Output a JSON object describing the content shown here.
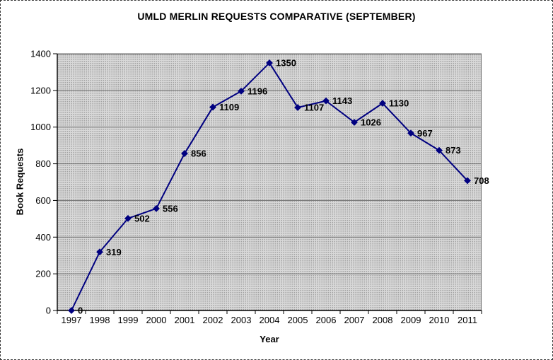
{
  "chart_data": {
    "type": "line",
    "title": "UMLD MERLIN REQUESTS COMPARATIVE (SEPTEMBER)",
    "xlabel": "Year",
    "ylabel": "Book Requests",
    "categories": [
      "1997",
      "1998",
      "1999",
      "2000",
      "2001",
      "2002",
      "2003",
      "2004",
      "2005",
      "2006",
      "2007",
      "2008",
      "2009",
      "2010",
      "2011"
    ],
    "series": [
      {
        "name": "Book Requests",
        "values": [
          0,
          319,
          502,
          556,
          856,
          1109,
          1196,
          1350,
          1107,
          1143,
          1026,
          1130,
          967,
          873,
          708
        ]
      }
    ],
    "data_labels_shown": true,
    "ylim": [
      0,
      1400
    ],
    "yticks": [
      0,
      200,
      400,
      600,
      800,
      1000,
      1200,
      1400
    ],
    "grid": "horizontal",
    "legend": "none",
    "marker": "diamond",
    "colors": {
      "line": "#000080",
      "marker": "#000080",
      "gridline": "#6e6e6e",
      "axis": "#000000",
      "plot_bg": "#d8d8d8",
      "plot_bg_dot": "#a2a2a2",
      "text": "#000000",
      "background": "#ffffff"
    }
  }
}
